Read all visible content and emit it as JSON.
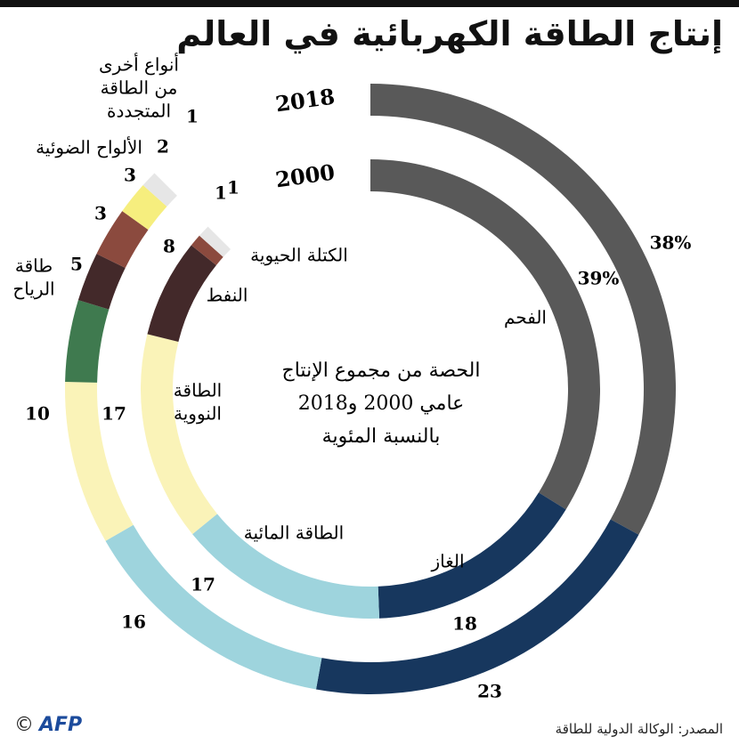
{
  "title": "إنتاج الطاقة الكهربائية في العالم",
  "source": "المصدر: الوكالة الدولية للطاقة",
  "logo": "AFP",
  "copyright": "©",
  "chart_data": {
    "type": "donut",
    "center_label": [
      "الحصة من مجموع الإنتاج",
      "عامي 2000 و2018",
      "بالنسبة المئوية"
    ],
    "categories": [
      "الفحم",
      "الغاز",
      "الطاقة المائية",
      "الطاقة النووية",
      "طاقة الرياح",
      "النفط",
      "الكتلة الحيوية",
      "الألواح الضوئية",
      "أنواع أخرى من الطاقة المتجددة"
    ],
    "colors": {
      "coal": "#595959",
      "gas": "#17375e",
      "hydro": "#9ed4dd",
      "nuclear": "#faf3b8",
      "wind": "#3f7a4f",
      "oil": "#43292a",
      "biomass": "#8b4a3e",
      "solar": "#f6ee7e",
      "other": "#e6e6e6"
    },
    "series": [
      {
        "year": "2018",
        "segments": [
          {
            "key": "coal",
            "value": 38,
            "label": "38%"
          },
          {
            "key": "gas",
            "value": 23,
            "label": "23"
          },
          {
            "key": "hydro",
            "value": 16,
            "label": "16"
          },
          {
            "key": "nuclear",
            "value": 10,
            "label": "10"
          },
          {
            "key": "wind",
            "value": 5,
            "label": "5"
          },
          {
            "key": "oil",
            "value": 3,
            "label": "3"
          },
          {
            "key": "biomass",
            "value": 3,
            "label": "3"
          },
          {
            "key": "solar",
            "value": 2,
            "label": "2"
          },
          {
            "key": "other",
            "value": 1,
            "label": "1"
          }
        ]
      },
      {
        "year": "2000",
        "segments": [
          {
            "key": "coal",
            "value": 39,
            "label": "39%"
          },
          {
            "key": "gas",
            "value": 18,
            "label": "18"
          },
          {
            "key": "hydro",
            "value": 17,
            "label": "17"
          },
          {
            "key": "nuclear",
            "value": 17,
            "label": "17"
          },
          {
            "key": "oil",
            "value": 8,
            "label": "8"
          },
          {
            "key": "biomass",
            "value": 1,
            "label": "1"
          },
          {
            "key": "other",
            "value": 1,
            "label": "1"
          }
        ]
      }
    ],
    "annotations": {
      "coal": "الفحم",
      "gas": "الغاز",
      "hydro": "الطاقة المائية",
      "nuclear": [
        "الطاقة",
        "النووية"
      ],
      "oil": "النفط",
      "biomass": "الكتلة الحيوية",
      "wind": [
        "طاقة",
        "الرياح"
      ],
      "solar": "الألواح الضوئية",
      "other": [
        "أنواع أخرى",
        "من الطاقة",
        "المتجددة"
      ]
    }
  }
}
